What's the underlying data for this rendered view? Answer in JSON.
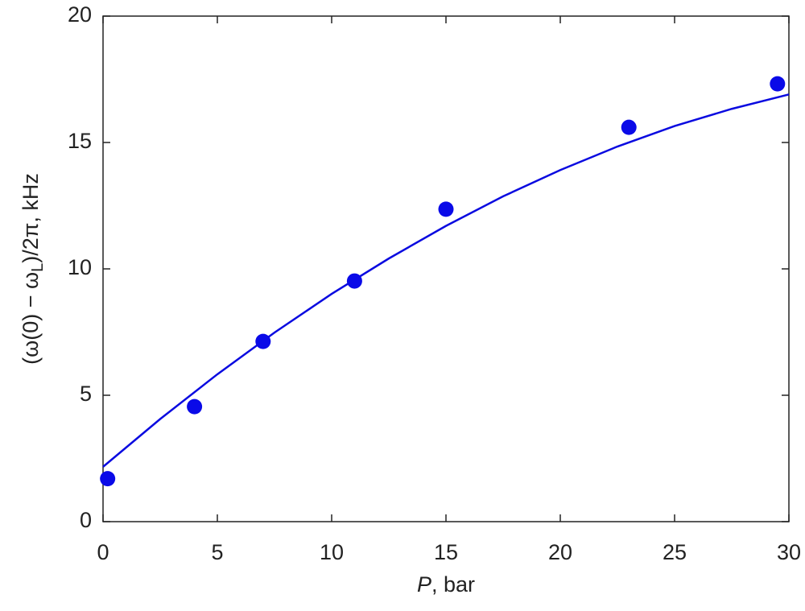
{
  "chart_data": {
    "type": "scatter",
    "x_label": {
      "italic": "P",
      "rest": ", bar"
    },
    "y_label": {
      "prefix": "(ω(0) − ω",
      "sub": "L",
      "suffix": ")/2π, kHz"
    },
    "series": [
      {
        "kind": "points",
        "color": "#0a0ae8",
        "x": [
          0.2,
          4,
          7,
          11,
          15,
          23,
          29.5
        ],
        "values": [
          1.7,
          4.55,
          7.13,
          9.52,
          12.36,
          15.6,
          17.32
        ]
      },
      {
        "kind": "line",
        "color": "#0a0ae0",
        "x": [
          0,
          2.5,
          5,
          7.5,
          10,
          12.5,
          15,
          17.5,
          20,
          22.5,
          25,
          27.5,
          30
        ],
        "values": [
          2.17,
          4.06,
          5.83,
          7.48,
          9.01,
          10.41,
          11.7,
          12.87,
          13.91,
          14.84,
          15.65,
          16.33,
          16.9
        ]
      }
    ],
    "xlim": [
      0,
      30
    ],
    "xticks": [
      0,
      5,
      10,
      15,
      20,
      25,
      30
    ],
    "ylim": [
      0,
      20
    ],
    "yticks": [
      0,
      5,
      10,
      15,
      20
    ],
    "grid": false
  }
}
